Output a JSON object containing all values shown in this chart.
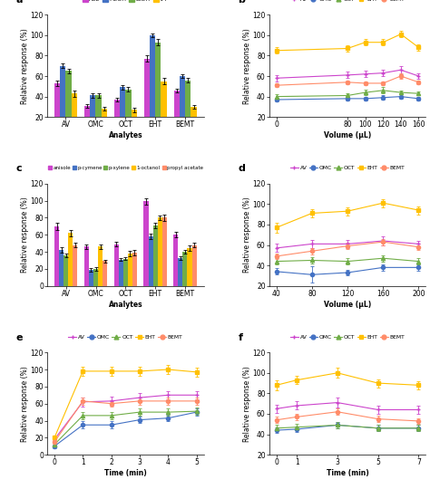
{
  "panel_a": {
    "title": "a",
    "categories": [
      "AV",
      "OMC",
      "OCT",
      "EHT",
      "BEMT"
    ],
    "series": {
      "ACE": [
        53,
        31,
        37,
        77,
        46
      ],
      "MeOH": [
        70,
        41,
        49,
        100,
        60
      ],
      "EtOH": [
        65,
        41,
        47,
        93,
        56
      ],
      "IPP": [
        43,
        28,
        27,
        55,
        30
      ]
    },
    "errors": {
      "ACE": [
        3,
        2,
        2,
        3,
        2
      ],
      "MeOH": [
        2,
        2,
        2,
        2,
        2
      ],
      "EtOH": [
        2,
        2,
        2,
        3,
        2
      ],
      "IPP": [
        3,
        2,
        2,
        3,
        2
      ]
    },
    "colors": {
      "ACE": "#CC44CC",
      "MeOH": "#4472C4",
      "EtOH": "#70AD47",
      "IPP": "#FFC000"
    },
    "ylabel": "Relative response (%)",
    "xlabel": "Analytes",
    "ylim": [
      20,
      120
    ],
    "yticks": [
      20,
      40,
      60,
      80,
      100,
      120
    ]
  },
  "panel_b": {
    "title": "b",
    "x": [
      0,
      80,
      100,
      120,
      140,
      160
    ],
    "series": {
      "AV": [
        58,
        61,
        62,
        63,
        66,
        60
      ],
      "OMC": [
        37,
        38,
        38,
        39,
        40,
        38
      ],
      "OCT": [
        40,
        41,
        44,
        46,
        44,
        43
      ],
      "EHT": [
        85,
        87,
        93,
        93,
        101,
        88
      ],
      "BEMT": [
        51,
        54,
        53,
        53,
        60,
        54
      ]
    },
    "errors": {
      "AV": [
        3,
        3,
        3,
        3,
        4,
        3
      ],
      "OMC": [
        2,
        2,
        2,
        2,
        2,
        2
      ],
      "OCT": [
        2,
        2,
        3,
        3,
        2,
        2
      ],
      "EHT": [
        3,
        3,
        3,
        3,
        3,
        3
      ],
      "BEMT": [
        2,
        2,
        2,
        2,
        3,
        2
      ]
    },
    "colors": {
      "AV": "#CC44CC",
      "OMC": "#4472C4",
      "OCT": "#70AD47",
      "EHT": "#FFC000",
      "BEMT": "#FF8C69"
    },
    "markers": {
      "AV": "+",
      "OMC": "o",
      "OCT": "^",
      "EHT": "s",
      "BEMT": "o"
    },
    "ylabel": "Relative response (%)",
    "xlabel": "Volume (μL)",
    "ylim": [
      20,
      120
    ],
    "yticks": [
      20,
      40,
      60,
      80,
      100,
      120
    ]
  },
  "panel_c": {
    "title": "c",
    "categories": [
      "AV",
      "OMC",
      "OCT",
      "EHT",
      "BEMT"
    ],
    "series": {
      "anisole": [
        70,
        46,
        49,
        99,
        60
      ],
      "p-cymene": [
        42,
        19,
        31,
        58,
        33
      ],
      "p-xylene": [
        36,
        20,
        32,
        71,
        40
      ],
      "1-octanol": [
        62,
        46,
        38,
        80,
        44
      ],
      "propyl acetate": [
        48,
        29,
        39,
        80,
        48
      ]
    },
    "errors": {
      "anisole": [
        4,
        3,
        3,
        4,
        3
      ],
      "p-cymene": [
        3,
        2,
        2,
        3,
        2
      ],
      "p-xylene": [
        2,
        2,
        2,
        3,
        2
      ],
      "1-octanol": [
        4,
        3,
        3,
        3,
        3
      ],
      "propyl acetate": [
        3,
        2,
        3,
        4,
        3
      ]
    },
    "colors": {
      "anisole": "#CC44CC",
      "p-cymene": "#4472C4",
      "p-xylene": "#70AD47",
      "1-octanol": "#FFC000",
      "propyl acetate": "#FF8C69"
    },
    "ylabel": "Relative response (%)",
    "xlabel": "Analytes",
    "ylim": [
      0,
      120
    ],
    "yticks": [
      0,
      20,
      40,
      60,
      80,
      100,
      120
    ]
  },
  "panel_d": {
    "title": "d",
    "x": [
      40,
      80,
      120,
      160,
      200
    ],
    "series": {
      "AV": [
        57,
        61,
        61,
        64,
        61
      ],
      "OMC": [
        34,
        31,
        33,
        38,
        38
      ],
      "OCT": [
        44,
        45,
        44,
        47,
        44
      ],
      "EHT": [
        77,
        91,
        93,
        101,
        94
      ],
      "BEMT": [
        49,
        54,
        59,
        63,
        58
      ]
    },
    "errors": {
      "AV": [
        4,
        4,
        4,
        4,
        3
      ],
      "OMC": [
        3,
        8,
        3,
        3,
        3
      ],
      "OCT": [
        3,
        3,
        3,
        3,
        3
      ],
      "EHT": [
        5,
        4,
        4,
        4,
        4
      ],
      "BEMT": [
        3,
        3,
        3,
        3,
        3
      ]
    },
    "colors": {
      "AV": "#CC44CC",
      "OMC": "#4472C4",
      "OCT": "#70AD47",
      "EHT": "#FFC000",
      "BEMT": "#FF8C69"
    },
    "markers": {
      "AV": "+",
      "OMC": "o",
      "OCT": "^",
      "EHT": "s",
      "BEMT": "o"
    },
    "ylabel": "Relative response (%)",
    "xlabel": "Volume (μL)",
    "ylim": [
      20,
      120
    ],
    "yticks": [
      20,
      40,
      60,
      80,
      100,
      120
    ]
  },
  "panel_e": {
    "title": "e",
    "x": [
      0,
      1,
      2,
      3,
      4,
      5
    ],
    "series": {
      "AV": [
        18,
        62,
        63,
        67,
        70,
        70
      ],
      "OMC": [
        10,
        35,
        35,
        41,
        43,
        50
      ],
      "OCT": [
        12,
        46,
        46,
        50,
        50,
        51
      ],
      "EHT": [
        20,
        98,
        98,
        98,
        100,
        97
      ],
      "BEMT": [
        15,
        63,
        60,
        63,
        63,
        63
      ]
    },
    "errors": {
      "AV": [
        3,
        5,
        5,
        5,
        5,
        5
      ],
      "OMC": [
        2,
        4,
        4,
        4,
        4,
        4
      ],
      "OCT": [
        2,
        4,
        4,
        4,
        4,
        4
      ],
      "EHT": [
        3,
        5,
        5,
        5,
        5,
        5
      ],
      "BEMT": [
        2,
        4,
        4,
        4,
        4,
        4
      ]
    },
    "colors": {
      "AV": "#CC44CC",
      "OMC": "#4472C4",
      "OCT": "#70AD47",
      "EHT": "#FFC000",
      "BEMT": "#FF8C69"
    },
    "markers": {
      "AV": "+",
      "OMC": "o",
      "OCT": "^",
      "EHT": "s",
      "BEMT": "o"
    },
    "ylabel": "Relative response (%)",
    "xlabel": "Time (min)",
    "ylim": [
      0,
      120
    ],
    "yticks": [
      0,
      20,
      40,
      60,
      80,
      100,
      120
    ]
  },
  "panel_f": {
    "title": "f",
    "x": [
      0,
      1,
      3,
      5,
      7
    ],
    "series": {
      "AV": [
        65,
        68,
        71,
        64,
        64
      ],
      "OMC": [
        44,
        45,
        49,
        46,
        46
      ],
      "OCT": [
        46,
        47,
        49,
        46,
        46
      ],
      "EHT": [
        88,
        93,
        100,
        90,
        88
      ],
      "BEMT": [
        54,
        57,
        62,
        55,
        53
      ]
    },
    "errors": {
      "AV": [
        4,
        4,
        5,
        4,
        4
      ],
      "OMC": [
        3,
        3,
        3,
        3,
        3
      ],
      "OCT": [
        3,
        3,
        3,
        3,
        3
      ],
      "EHT": [
        5,
        4,
        5,
        4,
        4
      ],
      "BEMT": [
        3,
        3,
        3,
        3,
        3
      ]
    },
    "colors": {
      "AV": "#CC44CC",
      "OMC": "#4472C4",
      "OCT": "#70AD47",
      "EHT": "#FFC000",
      "BEMT": "#FF8C69"
    },
    "markers": {
      "AV": "+",
      "OMC": "o",
      "OCT": "^",
      "EHT": "s",
      "BEMT": "o"
    },
    "ylabel": "Relative response (%)",
    "xlabel": "Time (min)",
    "ylim": [
      20,
      120
    ],
    "yticks": [
      20,
      40,
      60,
      80,
      100,
      120
    ]
  }
}
